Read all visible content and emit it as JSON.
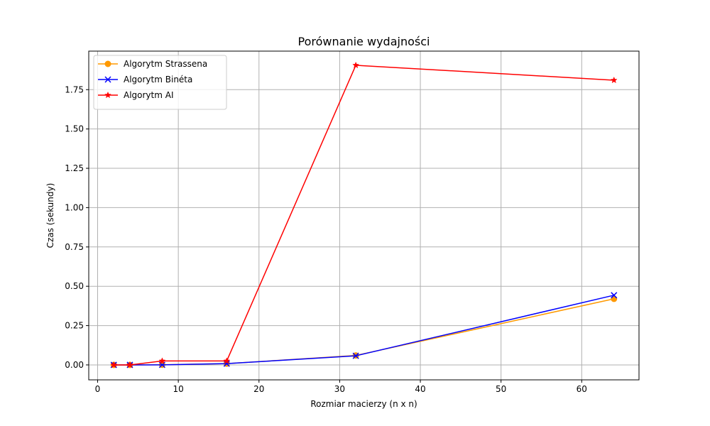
{
  "chart_data": {
    "type": "line",
    "title": "Porównanie wydajności",
    "xlabel": "Rozmiar macierzy (n x n)",
    "ylabel": "Czas (sekundy)",
    "xlim": [
      -1.1,
      67.1
    ],
    "ylim": [
      -0.095,
      1.995
    ],
    "xticks": [
      0,
      10,
      20,
      30,
      40,
      50,
      60
    ],
    "xtick_labels": [
      "0",
      "10",
      "20",
      "30",
      "40",
      "50",
      "60"
    ],
    "yticks": [
      0,
      0.25,
      0.5,
      0.75,
      1.0,
      1.25,
      1.5,
      1.75
    ],
    "ytick_labels": [
      "0.00",
      "0.25",
      "0.50",
      "0.75",
      "1.00",
      "1.25",
      "1.50",
      "1.75"
    ],
    "grid": true,
    "legend_position": "top-left",
    "x": [
      2,
      4,
      8,
      16,
      32,
      64
    ],
    "series": [
      {
        "name": "Algorytm Strassena",
        "color": "#ff9900",
        "marker": "circle",
        "values": [
          0.0,
          0.0,
          0.001,
          0.008,
          0.06,
          0.42
        ]
      },
      {
        "name": "Algorytm Binéta",
        "color": "#0000ff",
        "marker": "x",
        "values": [
          0.0,
          0.0,
          0.0005,
          0.008,
          0.058,
          0.443
        ]
      },
      {
        "name": "Algorytm AI",
        "color": "#ff0000",
        "marker": "star",
        "values": [
          0.0,
          0.0,
          0.025,
          0.025,
          1.905,
          1.81
        ]
      }
    ]
  }
}
